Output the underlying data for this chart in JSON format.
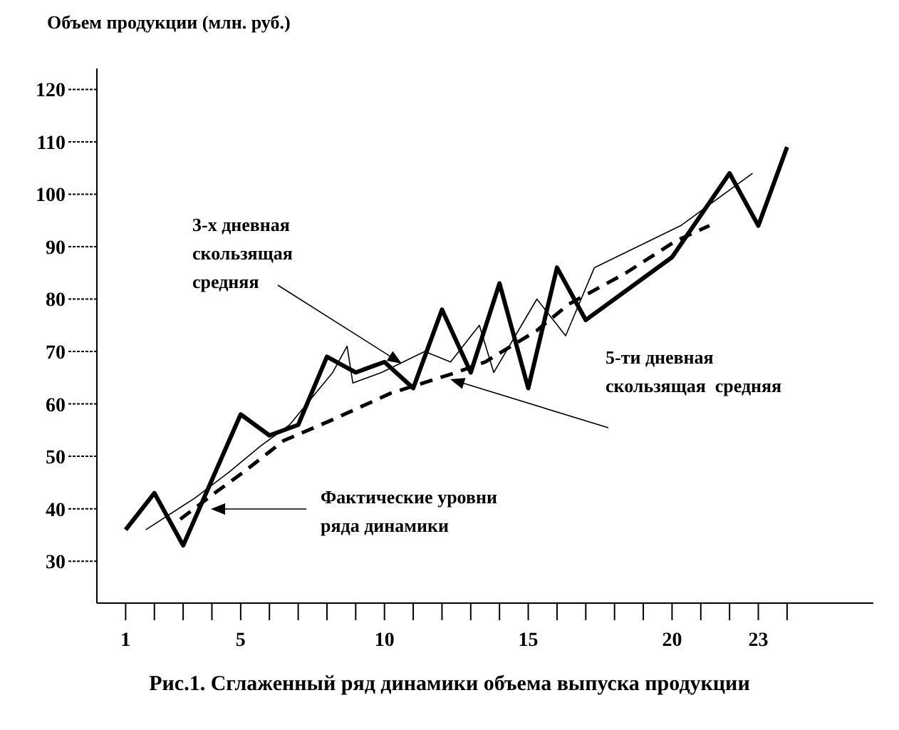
{
  "chart_data": {
    "type": "line",
    "title": "Рис.1. Сглаженный ряд динамики объема выпуска продукции",
    "ylabel": "Объем продукции (млн. руб.)",
    "xlim": [
      0,
      27
    ],
    "ylim": [
      22,
      124
    ],
    "yticks": [
      30,
      40,
      50,
      60,
      70,
      80,
      90,
      100,
      110,
      120
    ],
    "xticks": [
      1,
      {
        "value": 2,
        "label": null
      },
      {
        "value": 3,
        "label": null
      },
      {
        "value": 4,
        "label": null
      },
      5,
      {
        "value": 6,
        "label": null
      },
      {
        "value": 7,
        "label": null
      },
      {
        "value": 8,
        "label": null
      },
      {
        "value": 9,
        "label": null
      },
      10,
      {
        "value": 11,
        "label": null
      },
      {
        "value": 12,
        "label": null
      },
      {
        "value": 13,
        "label": null
      },
      {
        "value": 14,
        "label": null
      },
      15,
      {
        "value": 16,
        "label": null
      },
      {
        "value": 17,
        "label": null
      },
      {
        "value": 18,
        "label": null
      },
      {
        "value": 19,
        "label": null
      },
      20,
      {
        "value": 21,
        "label": null
      },
      {
        "value": 22,
        "label": null
      },
      23,
      {
        "value": 24,
        "label": null
      }
    ],
    "grid": false,
    "marker": "none",
    "legend": false,
    "series": [
      {
        "color": "#000000",
        "line_style": "solid",
        "x": [
          1,
          2,
          3,
          5,
          6,
          7,
          8,
          9,
          10,
          11,
          12,
          13,
          14,
          15,
          16,
          17,
          20,
          22,
          23,
          24
        ],
        "values": [
          36,
          43,
          33,
          58,
          54,
          56,
          69,
          66,
          68,
          63,
          78,
          66,
          83,
          63,
          86,
          76,
          88,
          104,
          94,
          109
        ]
      },
      {
        "color": "#000000",
        "line_style": "solid",
        "x": [
          1.7,
          3.4,
          4.6,
          5.7,
          6.7,
          8.2,
          8.7,
          8.9,
          9.9,
          11.4,
          12.3,
          13.3,
          13.8,
          15.3,
          16.3,
          17.3,
          20.3,
          22.8
        ],
        "values": [
          36,
          42,
          47,
          52,
          56,
          66,
          71,
          64,
          66,
          70,
          68,
          75,
          66,
          80,
          73,
          86,
          94,
          104
        ]
      },
      {
        "color": "#000000",
        "line_style": "dashed",
        "x": [
          2.9,
          4.1,
          5.1,
          6.5,
          8.2,
          10.2,
          12.5,
          13.5,
          15.3,
          16.4,
          18.4,
          20.1,
          21.3
        ],
        "values": [
          38,
          43,
          47,
          53,
          57,
          62,
          66,
          68,
          74,
          79,
          85,
          91,
          94
        ]
      }
    ],
    "annotations": [
      "3-х дневная\nскользящая\nсредняя",
      "5-ти дневная\nскользящая  средняя",
      "Фактические уровни\nряда динамики"
    ]
  }
}
